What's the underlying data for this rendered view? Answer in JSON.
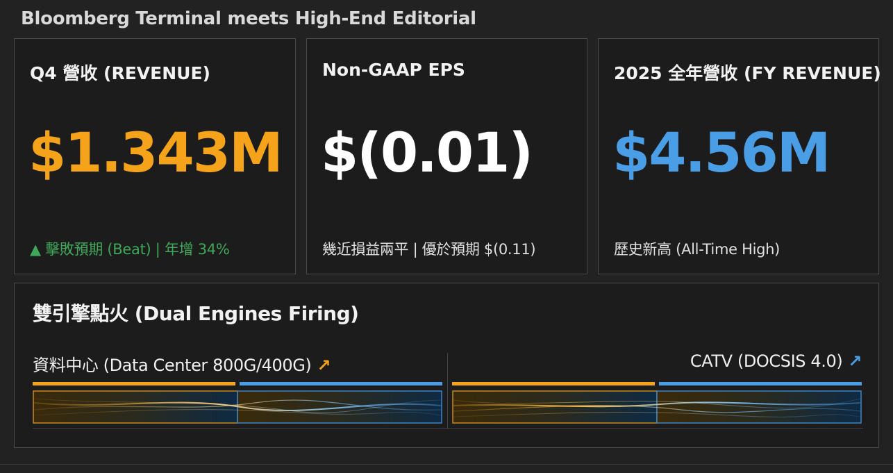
{
  "header": {
    "title": "Bloomberg Terminal meets High-End Editorial"
  },
  "colors": {
    "orange": "#f5a31a",
    "blue": "#4a9ee6",
    "green": "#3fa85a",
    "white": "#ffffff"
  },
  "cards": [
    {
      "label": "Q4 營收 (REVENUE)",
      "value": "$1.343M",
      "value_color": "#f5a31a",
      "note": "▲ 擊敗預期 (Beat) | 年增 34%",
      "note_color": "#3fa85a"
    },
    {
      "label": "Non-GAAP EPS",
      "value": "$(0.01)",
      "value_color": "#ffffff",
      "note": "幾近損益兩平 | 優於預期 $(0.11)",
      "note_color": "#e0e0e0"
    },
    {
      "label": "2025 全年營收 (FY REVENUE)",
      "value": "$4.56M",
      "value_color": "#4a9ee6",
      "note": "歷史新高 (All-Time High)",
      "note_color": "#e0e0e0"
    }
  ],
  "engines": {
    "title": "雙引擎點火 (Dual Engines Firing)",
    "left": {
      "label": "資料中心 (Data Center 800G/400G)",
      "arrow": "↗",
      "arrow_color": "#f5a31a",
      "icon": "trend-up-arrow"
    },
    "right": {
      "label": "CATV (DOCSIS 4.0)",
      "arrow": "↗",
      "arrow_color": "#4a9ee6",
      "icon": "trend-up-arrow"
    }
  }
}
